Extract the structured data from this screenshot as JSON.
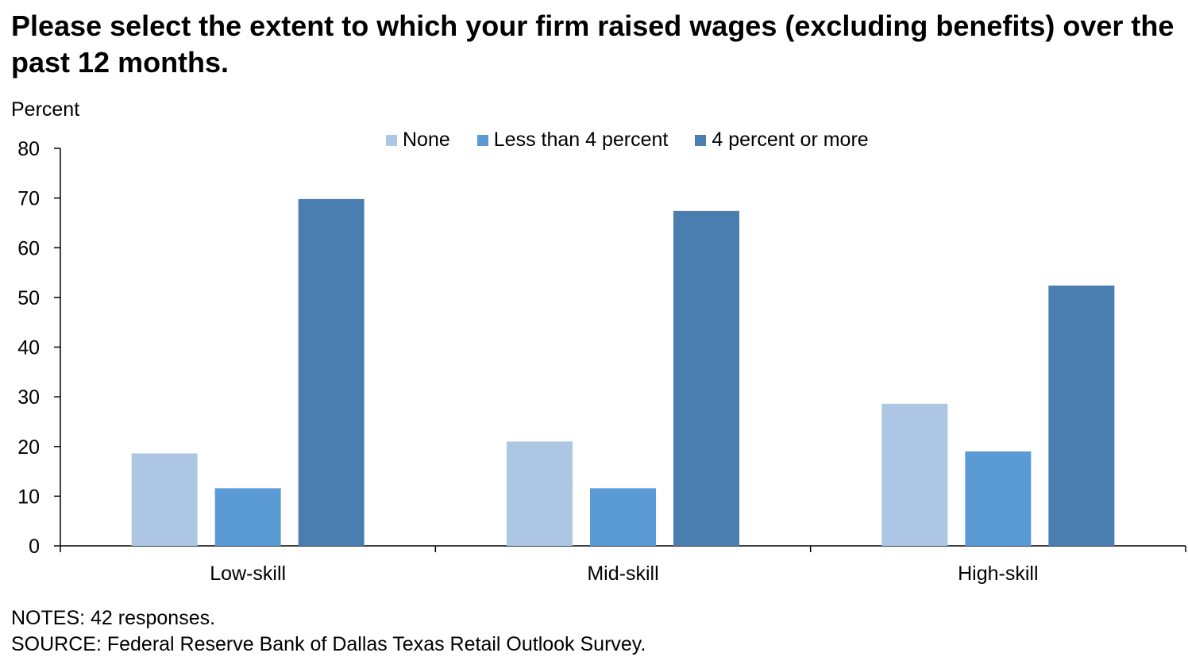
{
  "chart_data": {
    "type": "bar",
    "title": "Please select the extent to which your firm raised wages (excluding benefits) over the past 12 months.",
    "ylabel": "Percent",
    "xlabel": "",
    "ylim": [
      0,
      80
    ],
    "yticks": [
      0,
      10,
      20,
      30,
      40,
      50,
      60,
      70,
      80
    ],
    "categories": [
      "Low-skill",
      "Mid-skill",
      "High-skill"
    ],
    "series": [
      {
        "name": "None",
        "color": "#adc6e4",
        "values": [
          18.6,
          21.0,
          28.6
        ]
      },
      {
        "name": "Less than 4 percent",
        "color": "#5b9bd5",
        "values": [
          11.6,
          11.6,
          19.0
        ]
      },
      {
        "name": "4 percent or more",
        "color": "#4a7eb0",
        "values": [
          69.8,
          67.4,
          52.4
        ]
      }
    ],
    "legend_position": "top-center",
    "grid": false
  },
  "notes": {
    "line1": "NOTES: 42 responses.",
    "line2": "SOURCE: Federal Reserve Bank of Dallas Texas Retail Outlook Survey."
  }
}
